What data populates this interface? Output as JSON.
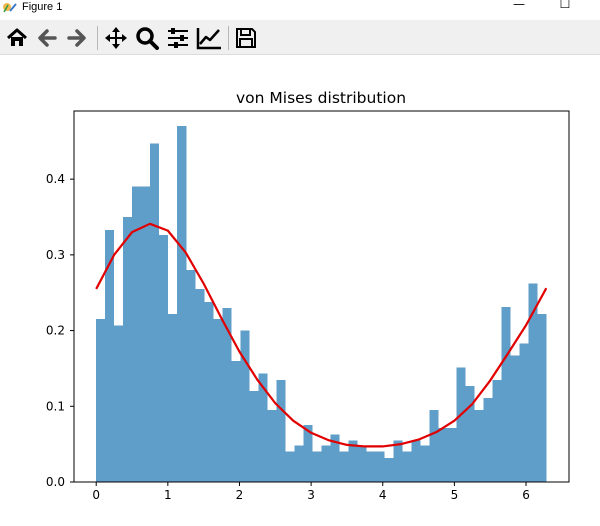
{
  "window": {
    "title": "Figure 1",
    "minimize_symbol": "—",
    "maximize_symbol": "☐"
  },
  "toolbar": {
    "buttons": [
      {
        "name": "home-icon",
        "tooltip": "Reset original view"
      },
      {
        "name": "back-icon",
        "tooltip": "Back"
      },
      {
        "name": "forward-icon",
        "tooltip": "Forward"
      },
      {
        "name": "pan-icon",
        "tooltip": "Pan"
      },
      {
        "name": "zoom-icon",
        "tooltip": "Zoom"
      },
      {
        "name": "subplots-icon",
        "tooltip": "Configure subplots"
      },
      {
        "name": "axes-edit-icon",
        "tooltip": "Edit axis"
      },
      {
        "name": "save-icon",
        "tooltip": "Save the figure"
      }
    ]
  },
  "colors": {
    "bars": "#5f9ec9",
    "curve": "#e00000",
    "axis": "#000000"
  },
  "chart_data": {
    "type": "bar",
    "title": "von Mises distribution",
    "xlabel": "",
    "ylabel": "",
    "xlim": [
      -0.31,
      6.6
    ],
    "ylim": [
      0,
      0.49
    ],
    "x_ticks": [
      "0",
      "1",
      "2",
      "3",
      "4",
      "5",
      "6"
    ],
    "y_ticks": [
      "0.0",
      "0.1",
      "0.2",
      "0.3",
      "0.4"
    ],
    "grid": false,
    "legend": "none",
    "histogram": {
      "bin_start": 0.0,
      "bin_width": 0.1257,
      "values": [
        0.215,
        0.333,
        0.207,
        0.35,
        0.39,
        0.39,
        0.447,
        0.326,
        0.222,
        0.47,
        0.28,
        0.255,
        0.238,
        0.215,
        0.23,
        0.16,
        0.2,
        0.12,
        0.143,
        0.095,
        0.135,
        0.04,
        0.048,
        0.075,
        0.04,
        0.048,
        0.063,
        0.04,
        0.055,
        0.048,
        0.04,
        0.04,
        0.032,
        0.055,
        0.04,
        0.055,
        0.048,
        0.095,
        0.071,
        0.071,
        0.151,
        0.127,
        0.095,
        0.111,
        0.135,
        0.231,
        0.167,
        0.183,
        0.262,
        0.222
      ]
    },
    "series": [
      {
        "type": "line",
        "x": [
          0.0,
          0.25,
          0.5,
          0.75,
          1.0,
          1.25,
          1.5,
          1.75,
          2.0,
          2.25,
          2.5,
          2.75,
          3.0,
          3.25,
          3.5,
          3.75,
          4.0,
          4.25,
          4.5,
          4.75,
          5.0,
          5.25,
          5.5,
          5.75,
          6.0,
          6.283
        ],
        "y": [
          0.255,
          0.3,
          0.33,
          0.341,
          0.332,
          0.303,
          0.262,
          0.216,
          0.172,
          0.135,
          0.104,
          0.081,
          0.065,
          0.055,
          0.049,
          0.047,
          0.047,
          0.05,
          0.056,
          0.066,
          0.081,
          0.103,
          0.134,
          0.17,
          0.207,
          0.256
        ]
      }
    ]
  }
}
